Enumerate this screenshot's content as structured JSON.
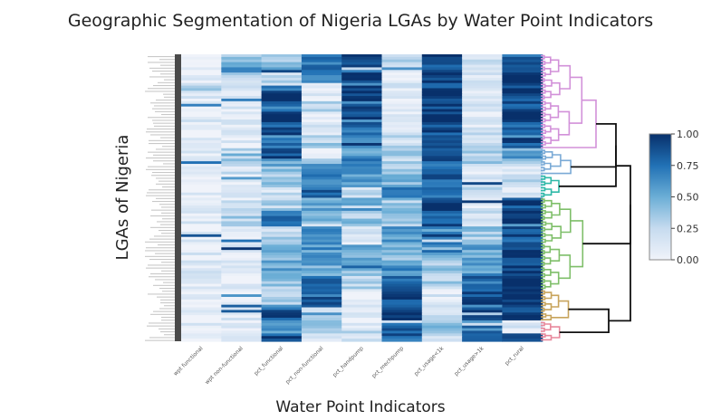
{
  "chart_data": {
    "type": "heatmap",
    "title": "Geographic Segmentation of Nigeria LGAs by Water Point Indicators",
    "xlabel": "Water Point Indicators",
    "ylabel": "LGAs of Nigeria",
    "columns": [
      "wpt functional",
      "wpt non-functional",
      "pct_functional",
      "pct_non-functional",
      "pct_handpump",
      "pct_mechpump",
      "pct_usage<1k",
      "pct_usage>1k",
      "pct_rural"
    ],
    "color_scale": {
      "name": "Blues",
      "range": [
        0,
        1
      ],
      "ticks": [
        "0.00",
        "0.25",
        "0.50",
        "0.75",
        "1.00"
      ],
      "low_color": "#f0f3fa",
      "high_color": "#08306b"
    },
    "dendrogram": {
      "side": "right",
      "clusters": [
        {
          "color": "#d291d9",
          "from_row": 0.0,
          "to_row": 0.33
        },
        {
          "color": "#7aaad6",
          "from_row": 0.33,
          "to_row": 0.42
        },
        {
          "color": "#2fb9a8",
          "from_row": 0.42,
          "to_row": 0.5
        },
        {
          "color": "#7fbf6a",
          "from_row": 0.5,
          "to_row": 0.82
        },
        {
          "color": "#c8a45c",
          "from_row": 0.82,
          "to_row": 0.93
        },
        {
          "color": "#e8889c",
          "from_row": 0.93,
          "to_row": 1.0
        }
      ]
    },
    "row_bands": [
      {
        "from": 0.0,
        "to": 0.03,
        "values": [
          0.05,
          0.35,
          0.3,
          0.75,
          0.9,
          0.15,
          0.95,
          0.15,
          0.95
        ]
      },
      {
        "from": 0.03,
        "to": 0.06,
        "values": [
          0.08,
          0.55,
          0.45,
          0.7,
          0.85,
          0.2,
          0.9,
          0.2,
          0.95
        ]
      },
      {
        "from": 0.06,
        "to": 0.1,
        "values": [
          0.05,
          0.3,
          0.35,
          0.6,
          0.95,
          0.1,
          0.95,
          0.1,
          1.0
        ]
      },
      {
        "from": 0.1,
        "to": 0.13,
        "values": [
          0.35,
          0.15,
          0.8,
          0.2,
          0.9,
          0.1,
          0.9,
          0.15,
          0.95
        ]
      },
      {
        "from": 0.13,
        "to": 0.16,
        "values": [
          0.1,
          0.1,
          0.95,
          0.05,
          0.95,
          0.05,
          1.0,
          0.05,
          0.9
        ]
      },
      {
        "from": 0.16,
        "to": 0.2,
        "values": [
          0.06,
          0.08,
          0.75,
          0.3,
          0.85,
          0.12,
          0.95,
          0.12,
          0.85
        ]
      },
      {
        "from": 0.2,
        "to": 0.24,
        "values": [
          0.12,
          0.1,
          0.95,
          0.1,
          0.95,
          0.05,
          0.95,
          0.1,
          0.95
        ]
      },
      {
        "from": 0.24,
        "to": 0.28,
        "values": [
          0.05,
          0.12,
          0.85,
          0.2,
          0.8,
          0.15,
          0.9,
          0.15,
          0.75
        ]
      },
      {
        "from": 0.28,
        "to": 0.33,
        "values": [
          0.08,
          0.05,
          0.7,
          0.3,
          0.75,
          0.2,
          0.85,
          0.2,
          0.9
        ]
      },
      {
        "from": 0.33,
        "to": 0.36,
        "values": [
          0.1,
          0.2,
          0.9,
          0.1,
          0.6,
          0.35,
          0.8,
          0.3,
          0.55
        ]
      },
      {
        "from": 0.36,
        "to": 0.39,
        "values": [
          0.15,
          0.35,
          0.55,
          0.5,
          0.7,
          0.3,
          0.75,
          0.25,
          0.3
        ]
      },
      {
        "from": 0.39,
        "to": 0.42,
        "values": [
          0.08,
          0.2,
          0.45,
          0.55,
          0.6,
          0.35,
          0.85,
          0.15,
          0.2
        ]
      },
      {
        "from": 0.42,
        "to": 0.46,
        "values": [
          0.06,
          0.1,
          0.35,
          0.65,
          0.45,
          0.4,
          0.85,
          0.2,
          0.3
        ]
      },
      {
        "from": 0.46,
        "to": 0.5,
        "values": [
          0.04,
          0.08,
          0.2,
          0.8,
          0.25,
          0.7,
          0.7,
          0.3,
          0.15
        ]
      },
      {
        "from": 0.5,
        "to": 0.55,
        "values": [
          0.05,
          0.15,
          0.3,
          0.55,
          0.5,
          0.35,
          0.95,
          0.1,
          0.9
        ]
      },
      {
        "from": 0.55,
        "to": 0.6,
        "values": [
          0.08,
          0.25,
          0.7,
          0.4,
          0.35,
          0.4,
          0.85,
          0.2,
          0.95
        ]
      },
      {
        "from": 0.6,
        "to": 0.66,
        "values": [
          0.06,
          0.12,
          0.25,
          0.75,
          0.1,
          0.55,
          0.6,
          0.35,
          0.85
        ]
      },
      {
        "from": 0.66,
        "to": 0.72,
        "values": [
          0.05,
          0.1,
          0.4,
          0.6,
          0.5,
          0.45,
          0.5,
          0.5,
          0.95
        ]
      },
      {
        "from": 0.72,
        "to": 0.77,
        "values": [
          0.07,
          0.08,
          0.55,
          0.5,
          0.4,
          0.6,
          0.35,
          0.6,
          0.9
        ]
      },
      {
        "from": 0.77,
        "to": 0.82,
        "values": [
          0.04,
          0.06,
          0.35,
          0.75,
          0.25,
          0.75,
          0.3,
          0.75,
          1.0
        ]
      },
      {
        "from": 0.82,
        "to": 0.88,
        "values": [
          0.05,
          0.05,
          0.25,
          0.8,
          0.1,
          0.9,
          0.1,
          0.9,
          0.95
        ]
      },
      {
        "from": 0.88,
        "to": 0.93,
        "values": [
          0.08,
          0.1,
          0.85,
          0.2,
          0.15,
          0.95,
          0.2,
          0.85,
          0.9
        ]
      },
      {
        "from": 0.93,
        "to": 0.97,
        "values": [
          0.06,
          0.08,
          0.6,
          0.45,
          0.1,
          0.85,
          0.35,
          0.7,
          0.1
        ]
      },
      {
        "from": 0.97,
        "to": 1.0,
        "values": [
          0.1,
          0.12,
          0.9,
          0.15,
          0.2,
          0.8,
          0.25,
          0.8,
          0.95
        ]
      }
    ]
  }
}
